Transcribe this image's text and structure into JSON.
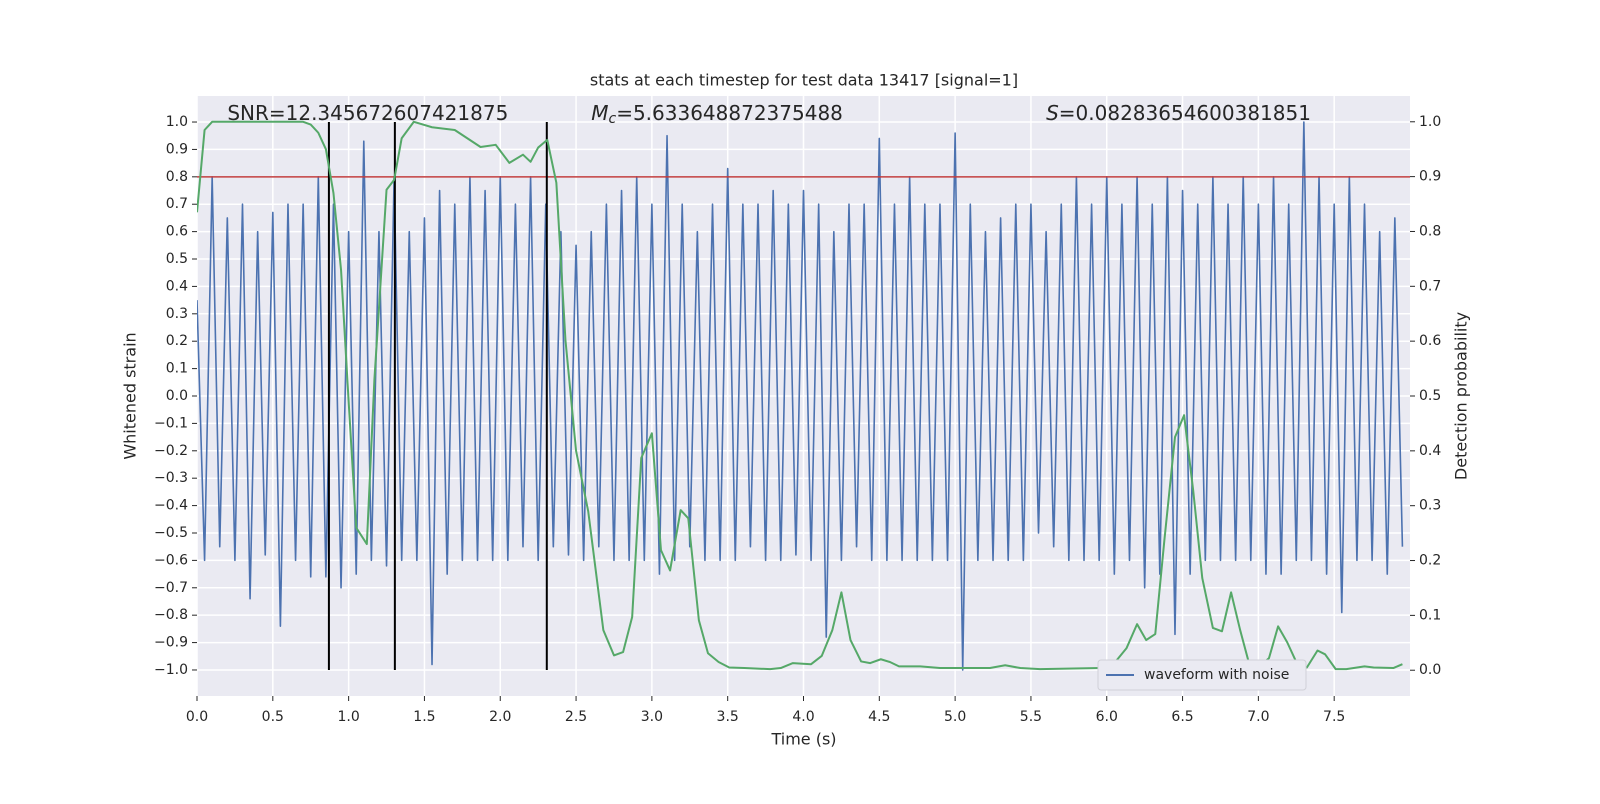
{
  "chart_data": {
    "type": "line",
    "title": "stats at each timestep for test data 13417 [signal=1]",
    "xlabel": "Time (s)",
    "ylabel": "Whitened strain",
    "y2label": "Detection probability",
    "annotations": [
      {
        "text": "SNR=12.345672607421875",
        "x": 0.2,
        "y": 1.03
      },
      {
        "symbol": "M",
        "subscript": "c",
        "text": "=5.633648872375488",
        "x": 2.6,
        "y": 1.03
      },
      {
        "symbol": "S",
        "text": "=0.08283654600381851",
        "x": 5.6,
        "y": 1.03
      }
    ],
    "xlim": [
      0,
      8.0
    ],
    "ylim": [
      -1.095,
      1.095
    ],
    "y2lim": [
      -0.047,
      1.047
    ],
    "xticks": [
      {
        "value": 0,
        "label": "0.0"
      },
      {
        "value": 0.5,
        "label": "0.5"
      },
      {
        "value": 1,
        "label": "1.0"
      },
      {
        "value": 1.5,
        "label": "1.5"
      },
      {
        "value": 2,
        "label": "2.0"
      },
      {
        "value": 2.5,
        "label": "2.5"
      },
      {
        "value": 3,
        "label": "3.0"
      },
      {
        "value": 3.5,
        "label": "3.5"
      },
      {
        "value": 4,
        "label": "4.0"
      },
      {
        "value": 4.5,
        "label": "4.5"
      },
      {
        "value": 5,
        "label": "5.0"
      },
      {
        "value": 5.5,
        "label": "5.5"
      },
      {
        "value": 6,
        "label": "6.0"
      },
      {
        "value": 6.5,
        "label": "6.5"
      },
      {
        "value": 7,
        "label": "7.0"
      },
      {
        "value": 7.5,
        "label": "7.5"
      }
    ],
    "yticks": [
      {
        "value": -1,
        "label": "−1.0"
      },
      {
        "value": -0.9,
        "label": "−0.9"
      },
      {
        "value": -0.8,
        "label": "−0.8"
      },
      {
        "value": -0.7,
        "label": "−0.7"
      },
      {
        "value": -0.6,
        "label": "−0.6"
      },
      {
        "value": -0.5,
        "label": "−0.5"
      },
      {
        "value": -0.4,
        "label": "−0.4"
      },
      {
        "value": -0.3,
        "label": "−0.3"
      },
      {
        "value": -0.2,
        "label": "−0.2"
      },
      {
        "value": -0.1,
        "label": "−0.1"
      },
      {
        "value": 0,
        "label": "0.0"
      },
      {
        "value": 0.1,
        "label": "0.1"
      },
      {
        "value": 0.2,
        "label": "0.2"
      },
      {
        "value": 0.3,
        "label": "0.3"
      },
      {
        "value": 0.4,
        "label": "0.4"
      },
      {
        "value": 0.5,
        "label": "0.5"
      },
      {
        "value": 0.6,
        "label": "0.6"
      },
      {
        "value": 0.7,
        "label": "0.7"
      },
      {
        "value": 0.8,
        "label": "0.8"
      },
      {
        "value": 0.9,
        "label": "0.9"
      },
      {
        "value": 1,
        "label": "1.0"
      }
    ],
    "y2ticks": [
      {
        "value": 0,
        "label": "0.0"
      },
      {
        "value": 0.1,
        "label": "0.1"
      },
      {
        "value": 0.2,
        "label": "0.2"
      },
      {
        "value": 0.3,
        "label": "0.3"
      },
      {
        "value": 0.4,
        "label": "0.4"
      },
      {
        "value": 0.5,
        "label": "0.5"
      },
      {
        "value": 0.6,
        "label": "0.6"
      },
      {
        "value": 0.7,
        "label": "0.7"
      },
      {
        "value": 0.8,
        "label": "0.8"
      },
      {
        "value": 0.9,
        "label": "0.9"
      },
      {
        "value": 1,
        "label": "1.0"
      }
    ],
    "grid": true,
    "legend": "lower right",
    "hline": {
      "y": 0.8,
      "color": "#c03d3e"
    },
    "vlines": {
      "x": [
        0.87,
        1.305,
        2.307
      ],
      "ymin": -1,
      "ymax": 1,
      "color": "#000000"
    },
    "series": [
      {
        "name": "waveform with noise",
        "color": "#4c72b0",
        "x": [
          0,
          0.05,
          0.1,
          0.15,
          0.2,
          0.25,
          0.3,
          0.35,
          0.4,
          0.45,
          0.5,
          0.55,
          0.6,
          0.65,
          0.7,
          0.75,
          0.8,
          0.85,
          0.9,
          0.95,
          1,
          1.05,
          1.1,
          1.15,
          1.2,
          1.25,
          1.3,
          1.35,
          1.4,
          1.45,
          1.5,
          1.55,
          1.6,
          1.65,
          1.7,
          1.75,
          1.8,
          1.85,
          1.9,
          1.95,
          2,
          2.05,
          2.1,
          2.15,
          2.2,
          2.25,
          2.3,
          2.35,
          2.4,
          2.45,
          2.5,
          2.55,
          2.6,
          2.65,
          2.7,
          2.75,
          2.8,
          2.85,
          2.9,
          2.95,
          3,
          3.05,
          3.1,
          3.15,
          3.2,
          3.25,
          3.3,
          3.35,
          3.4,
          3.45,
          3.5,
          3.55,
          3.6,
          3.65,
          3.7,
          3.75,
          3.8,
          3.85,
          3.9,
          3.95,
          4,
          4.05,
          4.1,
          4.15,
          4.2,
          4.25,
          4.3,
          4.35,
          4.4,
          4.45,
          4.5,
          4.55,
          4.6,
          4.65,
          4.7,
          4.75,
          4.8,
          4.85,
          4.9,
          4.95,
          5,
          5.05,
          5.1,
          5.15,
          5.2,
          5.25,
          5.3,
          5.35,
          5.4,
          5.45,
          5.5,
          5.55,
          5.6,
          5.65,
          5.7,
          5.75,
          5.8,
          5.85,
          5.9,
          5.95,
          6,
          6.05,
          6.1,
          6.15,
          6.2,
          6.25,
          6.3,
          6.35,
          6.4,
          6.45,
          6.5,
          6.55,
          6.6,
          6.65,
          6.7,
          6.75,
          6.8,
          6.85,
          6.9,
          6.95,
          7,
          7.05,
          7.1,
          7.15,
          7.2,
          7.25,
          7.3,
          7.35,
          7.4,
          7.45,
          7.5,
          7.55,
          7.6,
          7.65,
          7.7,
          7.75,
          7.8,
          7.85,
          7.9,
          7.95
        ],
        "values": [
          0.35,
          -0.6,
          0.8,
          -0.55,
          0.65,
          -0.6,
          0.7,
          -0.74,
          0.6,
          -0.58,
          0.67,
          -0.84,
          0.7,
          -0.6,
          0.7,
          -0.66,
          0.8,
          -0.66,
          0.7,
          -0.7,
          0.6,
          -0.65,
          0.93,
          -0.6,
          0.6,
          -0.62,
          0.8,
          -0.6,
          0.6,
          -0.6,
          0.65,
          -0.98,
          0.75,
          -0.65,
          0.7,
          -0.6,
          0.8,
          -0.6,
          0.75,
          -0.6,
          0.8,
          -0.6,
          0.7,
          -0.55,
          0.8,
          -0.6,
          0.7,
          -0.55,
          0.6,
          -0.58,
          0.55,
          -0.6,
          0.6,
          -0.55,
          0.7,
          -0.6,
          0.75,
          -0.6,
          0.8,
          -0.6,
          0.7,
          -0.65,
          0.95,
          -0.6,
          0.7,
          -0.55,
          0.6,
          -0.6,
          0.7,
          -0.6,
          0.83,
          -0.6,
          0.7,
          -0.55,
          0.7,
          -0.6,
          0.75,
          -0.6,
          0.7,
          -0.58,
          0.75,
          -0.6,
          0.7,
          -0.88,
          0.6,
          -0.6,
          0.7,
          -0.55,
          0.7,
          -0.6,
          0.94,
          -0.6,
          0.7,
          -0.6,
          0.8,
          -0.6,
          0.7,
          -0.6,
          0.7,
          -0.6,
          0.96,
          -1.0,
          0.7,
          -0.6,
          0.6,
          -0.6,
          0.65,
          -0.6,
          0.7,
          -0.6,
          0.7,
          -0.5,
          0.6,
          -0.55,
          0.7,
          -0.6,
          0.8,
          -0.6,
          0.7,
          -0.6,
          0.8,
          -0.65,
          0.7,
          -0.6,
          0.8,
          -0.7,
          0.7,
          -0.65,
          0.8,
          -0.87,
          0.75,
          -0.65,
          0.7,
          -0.6,
          0.8,
          -0.6,
          0.7,
          -0.6,
          0.8,
          -0.6,
          0.7,
          -0.65,
          0.8,
          -0.65,
          0.7,
          -0.6,
          1.0,
          -0.6,
          0.8,
          -0.65,
          0.7,
          -0.79,
          0.8,
          -0.6,
          0.7,
          -0.6,
          0.6,
          -0.65,
          0.65,
          -0.55
        ]
      },
      {
        "color": "#55a868",
        "axis": "y2",
        "x": [
          0,
          0.05,
          0.1,
          0.7,
          0.75,
          0.8,
          0.85,
          0.9,
          0.95,
          1.0,
          1.05,
          1.12,
          1.17,
          1.25,
          1.3,
          1.35,
          1.43,
          1.55,
          1.7,
          1.87,
          1.97,
          2.06,
          2.15,
          2.2,
          2.25,
          2.31,
          2.37,
          2.43,
          2.5,
          2.58,
          2.68,
          2.75,
          2.81,
          2.87,
          2.93,
          3.0,
          3.06,
          3.12,
          3.19,
          3.24,
          3.31,
          3.37,
          3.44,
          3.51,
          3.61,
          3.78,
          3.85,
          3.93,
          4.05,
          4.12,
          4.19,
          4.25,
          4.31,
          4.38,
          4.44,
          4.51,
          4.57,
          4.63,
          4.77,
          4.9,
          5.23,
          5.33,
          5.43,
          5.56,
          5.96,
          6.05,
          6.13,
          6.2,
          6.26,
          6.32,
          6.38,
          6.45,
          6.51,
          6.57,
          6.63,
          6.7,
          6.76,
          6.82,
          6.88,
          6.94,
          7.0,
          7.07,
          7.13,
          7.19,
          7.26,
          7.32,
          7.39,
          7.44,
          7.51,
          7.58,
          7.7,
          7.76,
          7.89,
          7.95
        ],
        "values": [
          0.835,
          0.985,
          1.0,
          1.0,
          0.995,
          0.98,
          0.95,
          0.87,
          0.73,
          0.49,
          0.26,
          0.23,
          0.53,
          0.876,
          0.894,
          0.97,
          1.0,
          0.99,
          0.985,
          0.954,
          0.958,
          0.925,
          0.94,
          0.927,
          0.953,
          0.967,
          0.889,
          0.602,
          0.4,
          0.29,
          0.073,
          0.027,
          0.033,
          0.097,
          0.387,
          0.432,
          0.219,
          0.182,
          0.292,
          0.277,
          0.091,
          0.031,
          0.015,
          0.005,
          0.004,
          0.002,
          0.004,
          0.013,
          0.011,
          0.026,
          0.073,
          0.142,
          0.055,
          0.016,
          0.013,
          0.02,
          0.015,
          0.007,
          0.007,
          0.004,
          0.004,
          0.009,
          0.004,
          0.002,
          0.004,
          0.013,
          0.04,
          0.084,
          0.055,
          0.066,
          0.237,
          0.425,
          0.465,
          0.328,
          0.168,
          0.077,
          0.071,
          0.142,
          0.073,
          0.011,
          0.005,
          0.022,
          0.08,
          0.051,
          0.009,
          0.005,
          0.036,
          0.029,
          0.002,
          0.002,
          0.007,
          0.005,
          0.004,
          0.011
        ]
      }
    ]
  }
}
